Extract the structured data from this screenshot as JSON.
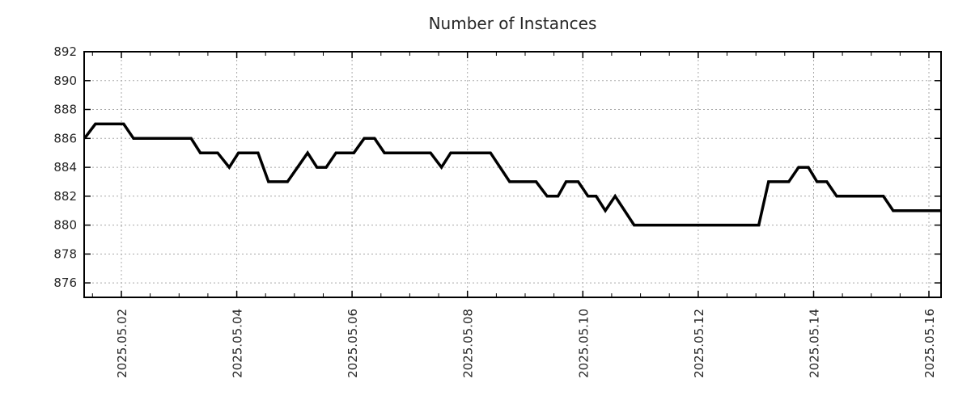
{
  "chart_data": {
    "type": "line",
    "title": "Number of Instances",
    "background": "#ffffff",
    "axis_color": "#000000",
    "grid_color": "#a8a8a8",
    "grid_dash": "2,3",
    "x_axis": {
      "range_days": [
        1.355,
        16.21
      ],
      "tick_days": [
        2,
        4,
        6,
        8,
        10,
        12,
        14,
        16
      ],
      "tick_labels": [
        "2025.05.02",
        "2025.05.04",
        "2025.05.06",
        "2025.05.08",
        "2025.05.10",
        "2025.05.12",
        "2025.05.14",
        "2025.05.16"
      ],
      "minor_tick_step_days": 0.5,
      "label_rotation_deg": -90
    },
    "y_axis": {
      "range": [
        875,
        892
      ],
      "ticks": [
        876,
        878,
        880,
        882,
        884,
        886,
        888,
        890,
        892
      ]
    },
    "legend": "none",
    "series": [
      {
        "name": "instances",
        "color": "#000000",
        "line_width": 3.5,
        "points": [
          [
            1.36,
            886
          ],
          [
            1.55,
            887
          ],
          [
            2.04,
            887
          ],
          [
            2.21,
            886
          ],
          [
            3.21,
            886
          ],
          [
            3.37,
            885
          ],
          [
            3.67,
            885
          ],
          [
            3.87,
            884
          ],
          [
            4.03,
            885
          ],
          [
            4.37,
            885
          ],
          [
            4.55,
            883
          ],
          [
            4.88,
            883
          ],
          [
            5.23,
            885
          ],
          [
            5.39,
            884
          ],
          [
            5.55,
            884
          ],
          [
            5.72,
            885
          ],
          [
            6.03,
            885
          ],
          [
            6.21,
            886
          ],
          [
            6.39,
            886
          ],
          [
            6.56,
            885
          ],
          [
            7.36,
            885
          ],
          [
            7.55,
            884
          ],
          [
            7.71,
            885
          ],
          [
            8.4,
            885
          ],
          [
            8.73,
            883
          ],
          [
            9.19,
            883
          ],
          [
            9.38,
            882
          ],
          [
            9.57,
            882
          ],
          [
            9.71,
            883
          ],
          [
            9.92,
            883
          ],
          [
            10.09,
            882
          ],
          [
            10.23,
            882
          ],
          [
            10.39,
            881
          ],
          [
            10.56,
            882
          ],
          [
            10.89,
            880
          ],
          [
            13.05,
            880
          ],
          [
            13.22,
            883
          ],
          [
            13.57,
            883
          ],
          [
            13.74,
            884
          ],
          [
            13.91,
            884
          ],
          [
            14.06,
            883
          ],
          [
            14.23,
            883
          ],
          [
            14.4,
            882
          ],
          [
            15.21,
            882
          ],
          [
            15.38,
            881
          ],
          [
            16.21,
            881
          ]
        ]
      }
    ]
  }
}
